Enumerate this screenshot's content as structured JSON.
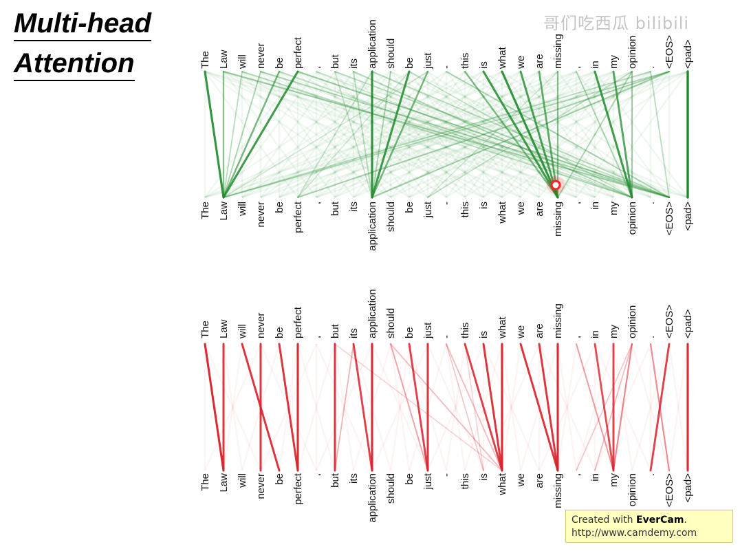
{
  "title": {
    "line1": "Multi-head",
    "line2": "Attention"
  },
  "watermark": "哥们吃西瓜 bilibili",
  "tokens": [
    "The",
    "Law",
    "will",
    "never",
    "be",
    "perfect",
    ",",
    "but",
    "its",
    "application",
    "should",
    "be",
    "just",
    "-",
    "this",
    "is",
    "what",
    "we",
    "are",
    "missing",
    ",",
    "in",
    "my",
    "opinion",
    ".",
    "<EOS>",
    "<pad>"
  ],
  "colors": {
    "green": "#1f8a2c",
    "red": "#d8202a",
    "cursor": "#ff2020"
  },
  "green_head": {
    "cursor_token_index": 19,
    "edges": [
      [
        0,
        1,
        0.9
      ],
      [
        1,
        1,
        0.5
      ],
      [
        5,
        1,
        0.85
      ],
      [
        4,
        1,
        0.6
      ],
      [
        3,
        1,
        0.35
      ],
      [
        2,
        1,
        0.3
      ],
      [
        9,
        9,
        0.9
      ],
      [
        11,
        9,
        0.85
      ],
      [
        12,
        9,
        0.6
      ],
      [
        10,
        9,
        0.35
      ],
      [
        8,
        9,
        0.3
      ],
      [
        7,
        9,
        0.25
      ],
      [
        15,
        19,
        0.85
      ],
      [
        16,
        19,
        0.9
      ],
      [
        17,
        19,
        0.8
      ],
      [
        18,
        19,
        0.7
      ],
      [
        14,
        19,
        0.55
      ],
      [
        19,
        19,
        0.5
      ],
      [
        23,
        19,
        0.35
      ],
      [
        21,
        23,
        0.85
      ],
      [
        22,
        23,
        0.75
      ],
      [
        23,
        23,
        0.4
      ],
      [
        20,
        23,
        0.35
      ],
      [
        25,
        9,
        0.4
      ],
      [
        25,
        5,
        0.35
      ],
      [
        24,
        1,
        0.3
      ],
      [
        25,
        1,
        0.3
      ],
      [
        23,
        12,
        0.25
      ],
      [
        1,
        25,
        0.4
      ],
      [
        3,
        25,
        0.35
      ],
      [
        5,
        25,
        0.4
      ],
      [
        7,
        25,
        0.3
      ],
      [
        9,
        25,
        0.3
      ],
      [
        13,
        25,
        0.35
      ],
      [
        2,
        23,
        0.3
      ],
      [
        4,
        23,
        0.25
      ],
      [
        6,
        23,
        0.2
      ],
      [
        8,
        23,
        0.3
      ],
      [
        11,
        23,
        0.25
      ],
      [
        26,
        26,
        1.0
      ],
      [
        24,
        25,
        0.3
      ],
      [
        19,
        12,
        0.2
      ],
      [
        9,
        5,
        0.25
      ],
      [
        11,
        5,
        0.2
      ],
      [
        12,
        1,
        0.2
      ]
    ]
  },
  "red_head": {
    "edges": [
      [
        0,
        1,
        0.95
      ],
      [
        1,
        1,
        0.9
      ],
      [
        2,
        4,
        0.9
      ],
      [
        3,
        3,
        0.9
      ],
      [
        4,
        5,
        0.9
      ],
      [
        5,
        5,
        0.95
      ],
      [
        7,
        7,
        0.9
      ],
      [
        8,
        9,
        0.85
      ],
      [
        9,
        9,
        0.95
      ],
      [
        8,
        7,
        0.3
      ],
      [
        10,
        12,
        0.4
      ],
      [
        11,
        12,
        0.85
      ],
      [
        12,
        12,
        0.9
      ],
      [
        10,
        16,
        0.3
      ],
      [
        7,
        16,
        0.2
      ],
      [
        14,
        16,
        0.85
      ],
      [
        15,
        16,
        0.9
      ],
      [
        16,
        16,
        0.95
      ],
      [
        13,
        16,
        0.3
      ],
      [
        13,
        15,
        0.25
      ],
      [
        14,
        15,
        0.2
      ],
      [
        17,
        19,
        0.9
      ],
      [
        18,
        19,
        0.9
      ],
      [
        19,
        19,
        0.95
      ],
      [
        20,
        22,
        0.4
      ],
      [
        21,
        22,
        0.8
      ],
      [
        22,
        22,
        0.85
      ],
      [
        23,
        22,
        0.5
      ],
      [
        23,
        21,
        0.3
      ],
      [
        23,
        20,
        0.25
      ],
      [
        25,
        24,
        0.85
      ],
      [
        24,
        25,
        0.5
      ],
      [
        26,
        26,
        0.95
      ]
    ]
  },
  "evercam": {
    "prefix": "Created with ",
    "brand": "EverCam",
    "suffix": ".",
    "url": "http://www.camdemy.com"
  }
}
